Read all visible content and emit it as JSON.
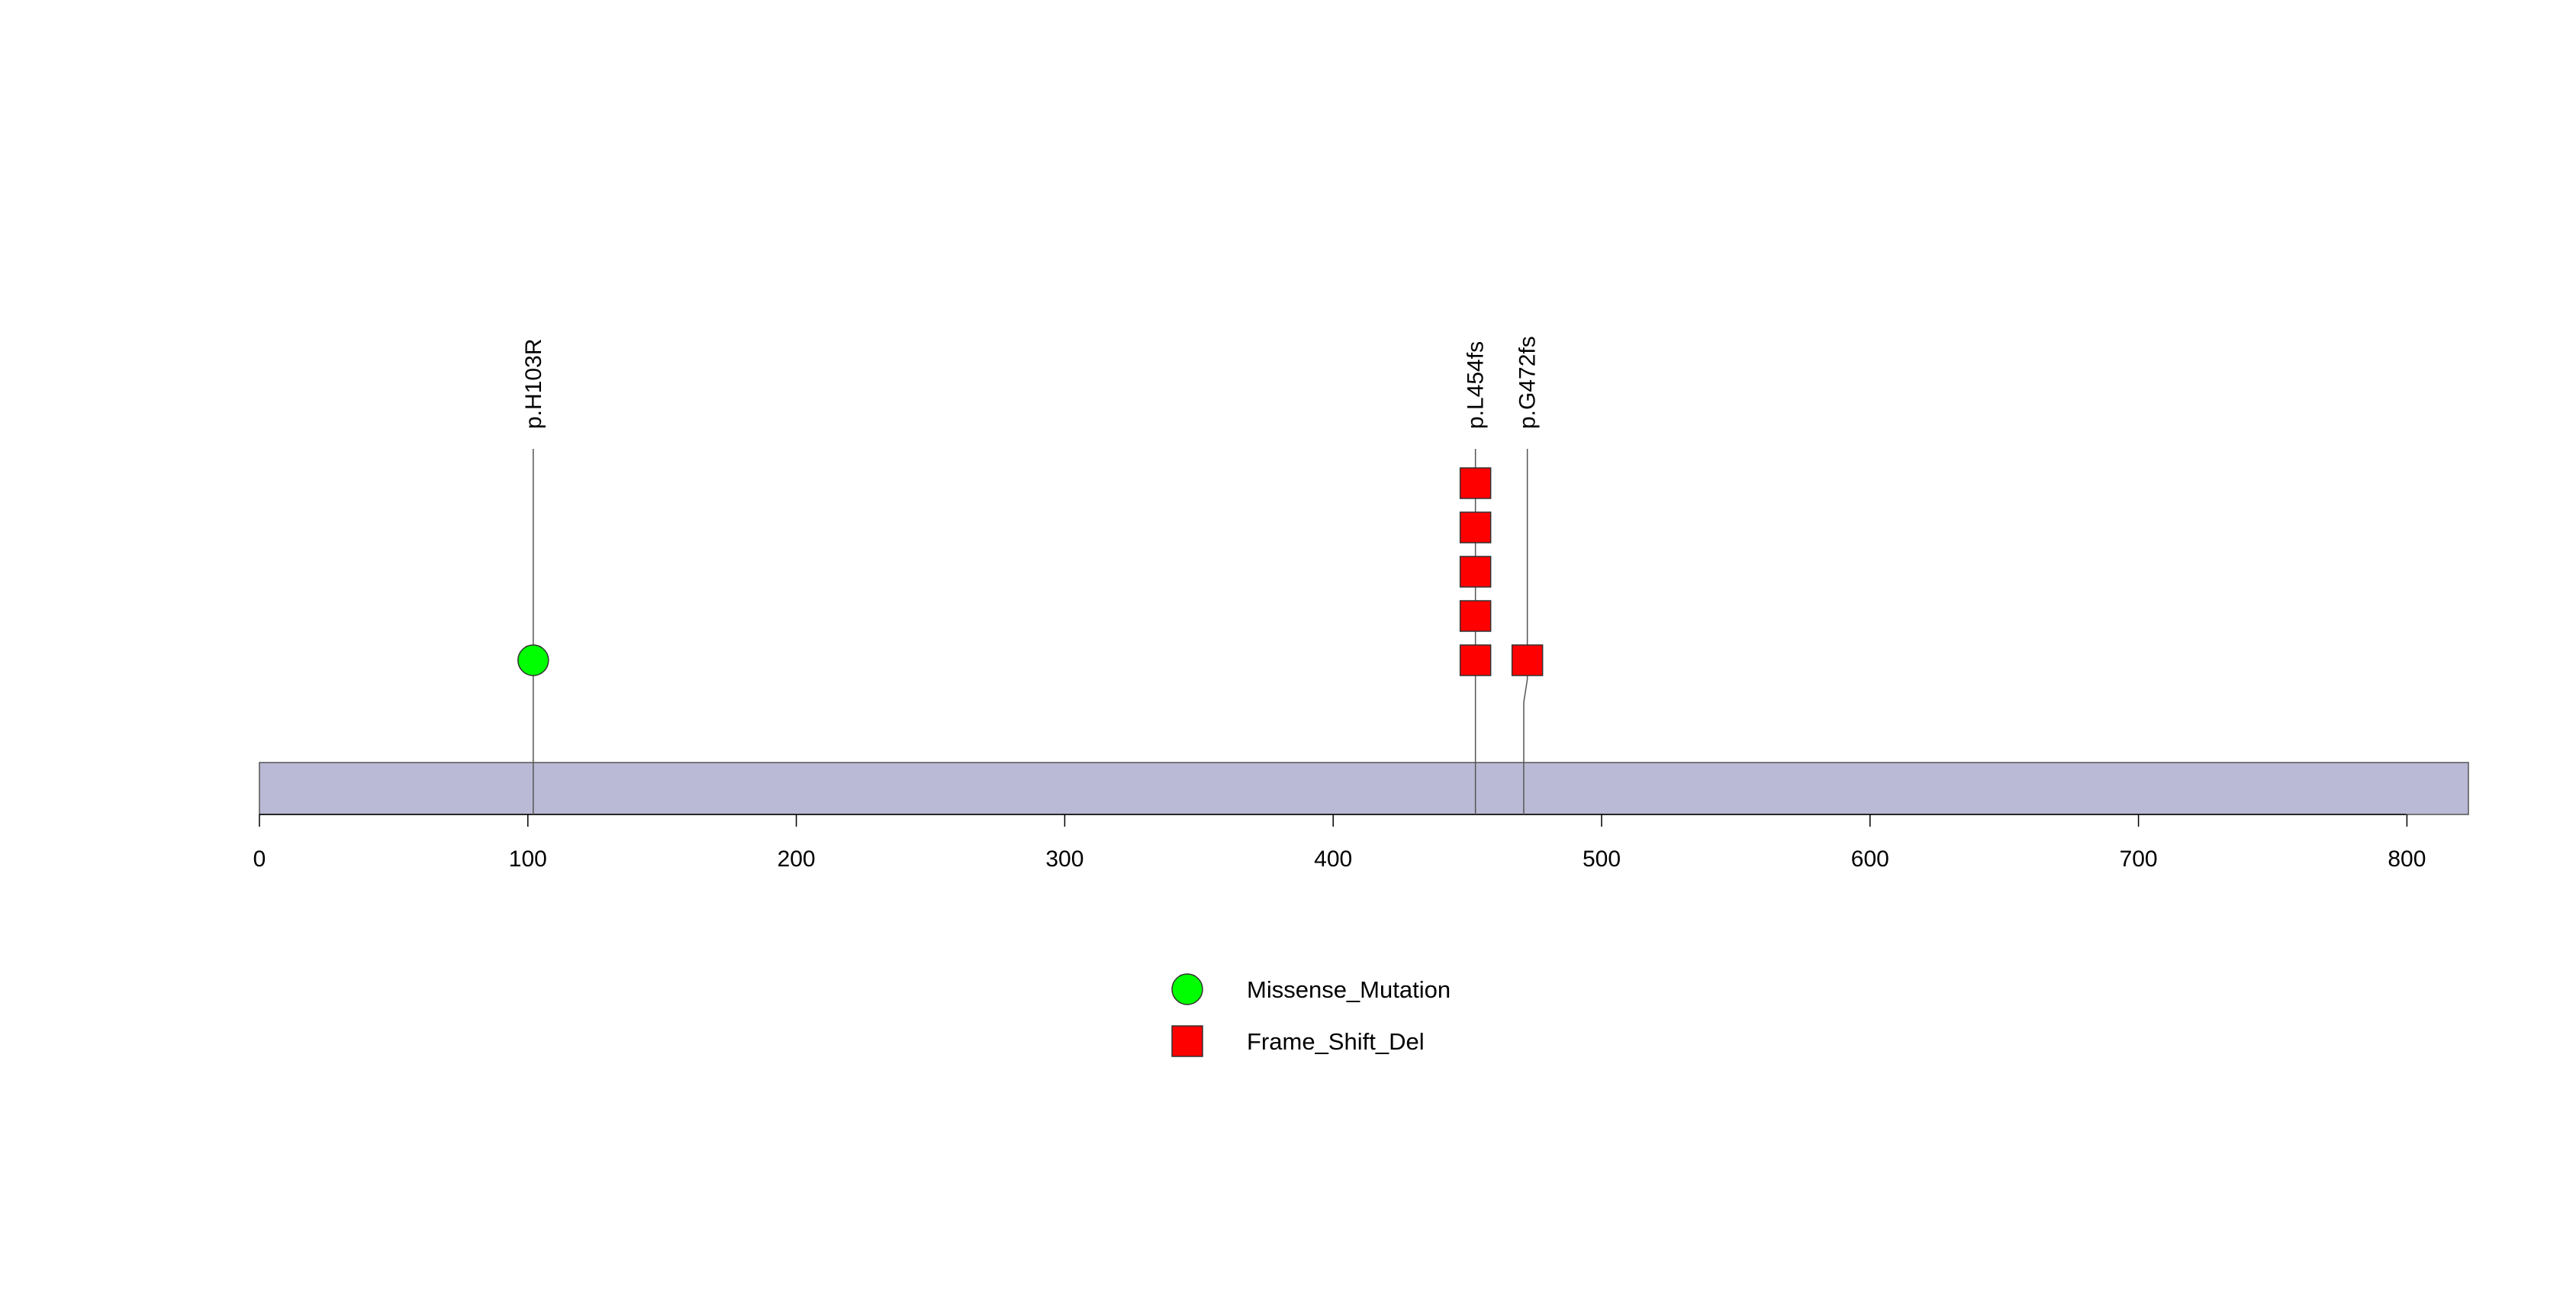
{
  "chart_data": {
    "type": "lollipop",
    "protein_length": 824,
    "xlim": [
      0,
      824
    ],
    "x_ticks": [
      0,
      100,
      200,
      300,
      400,
      500,
      600,
      700,
      800
    ],
    "x_tick_labels": [
      "0",
      "100",
      "200",
      "300",
      "400",
      "500",
      "600",
      "700",
      "800"
    ],
    "domain_bar_color": "#babad6",
    "mutations": [
      {
        "label": "p.H103R",
        "position": 102,
        "type": "Missense_Mutation",
        "count": 1
      },
      {
        "label": "p.L454fs",
        "position": 453,
        "type": "Frame_Shift_Del",
        "count": 5
      },
      {
        "label": "p.G472fs",
        "position": 471,
        "type": "Frame_Shift_Del",
        "count": 1
      }
    ],
    "legend": [
      {
        "label": "Missense_Mutation",
        "shape": "circle",
        "color": "#00ff00"
      },
      {
        "label": "Frame_Shift_Del",
        "shape": "square",
        "color": "#ff0000"
      }
    ]
  }
}
